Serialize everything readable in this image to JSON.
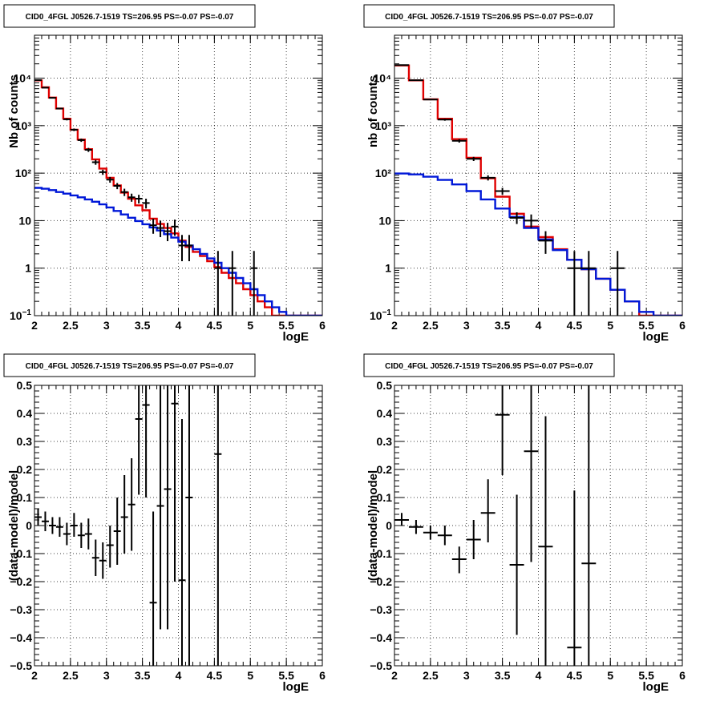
{
  "chart_data": [
    {
      "id": "p1",
      "type": "line",
      "title": "CID0_4FGL J0526.7-1519 TS=206.95 PS=-0.07 PS=-0.07",
      "xlabel": "logE",
      "ylabel": "Nb of counts",
      "xlim": [
        2,
        6
      ],
      "ylim": [
        0.1,
        80000
      ],
      "yscale": "log",
      "grid": true,
      "x_ticks": [
        "2",
        "2.5",
        "3",
        "3.5",
        "4",
        "4.5",
        "5",
        "5.5",
        "6"
      ],
      "y_ticks": [
        "10",
        "1",
        "10",
        "10²",
        "10³",
        "10⁴"
      ],
      "series": [
        {
          "kind": "step",
          "color": "#e00000",
          "edges": [
            2.0,
            2.1,
            2.2,
            2.3,
            2.4,
            2.5,
            2.6,
            2.7,
            2.8,
            2.9,
            3.0,
            3.1,
            3.2,
            3.3,
            3.4,
            3.5,
            3.6,
            3.7,
            3.8,
            3.9,
            4.0,
            4.1,
            4.2,
            4.3,
            4.4,
            4.5,
            4.6,
            4.7,
            4.8,
            4.9,
            5.0,
            5.1,
            5.2,
            5.3,
            5.4,
            5.5,
            5.6,
            5.7,
            5.8,
            5.9,
            6.0
          ],
          "values": [
            9000,
            6400,
            3900,
            2300,
            1400,
            820,
            510,
            320,
            195,
            125,
            80,
            55,
            39,
            29,
            21,
            16.5,
            11,
            8.5,
            7,
            5.4,
            3.8,
            2.8,
            2.2,
            1.8,
            1.4,
            1.05,
            0.8,
            0.62,
            0.48,
            0.36,
            0.27,
            0.2,
            0.15,
            0.1,
            0.1,
            0.1,
            0.1,
            0.1,
            0.1,
            0.1
          ]
        },
        {
          "kind": "step",
          "color": "#0018d8",
          "edges": [
            2.0,
            2.1,
            2.2,
            2.3,
            2.4,
            2.5,
            2.6,
            2.7,
            2.8,
            2.9,
            3.0,
            3.1,
            3.2,
            3.3,
            3.4,
            3.5,
            3.6,
            3.7,
            3.8,
            3.9,
            4.0,
            4.1,
            4.2,
            4.3,
            4.4,
            4.5,
            4.6,
            4.7,
            4.8,
            4.9,
            5.0,
            5.1,
            5.2,
            5.3,
            5.4,
            5.5,
            5.6,
            5.7,
            5.8,
            5.9,
            6.0
          ],
          "values": [
            49,
            47,
            44,
            40,
            37,
            34,
            31,
            28,
            25,
            22,
            19,
            16,
            13.5,
            11.5,
            9.8,
            8.4,
            7.2,
            6.2,
            5.2,
            4.4,
            3.6,
            3.0,
            2.5,
            2.0,
            1.6,
            1.3,
            1.0,
            0.8,
            0.62,
            0.48,
            0.36,
            0.27,
            0.2,
            0.15,
            0.12,
            0.1,
            0.1,
            0.1,
            0.1,
            0.1
          ]
        },
        {
          "kind": "errorbar",
          "color": "#000000",
          "points": [
            {
              "x": 2.05,
              "y": 9100,
              "lo": 8900,
              "hi": 9300
            },
            {
              "x": 2.15,
              "y": 6300,
              "lo": 6150,
              "hi": 6450
            },
            {
              "x": 2.25,
              "y": 3850,
              "lo": 3730,
              "hi": 3970
            },
            {
              "x": 2.35,
              "y": 2290,
              "lo": 2200,
              "hi": 2380
            },
            {
              "x": 2.45,
              "y": 1360,
              "lo": 1290,
              "hi": 1430
            },
            {
              "x": 2.55,
              "y": 820,
              "lo": 770,
              "hi": 870
            },
            {
              "x": 2.65,
              "y": 495,
              "lo": 455,
              "hi": 535
            },
            {
              "x": 2.75,
              "y": 310,
              "lo": 280,
              "hi": 340
            },
            {
              "x": 2.85,
              "y": 170,
              "lo": 150,
              "hi": 190
            },
            {
              "x": 2.95,
              "y": 105,
              "lo": 92,
              "hi": 118
            },
            {
              "x": 3.05,
              "y": 73,
              "lo": 63,
              "hi": 83
            },
            {
              "x": 3.15,
              "y": 54,
              "lo": 46,
              "hi": 62
            },
            {
              "x": 3.25,
              "y": 40,
              "lo": 33,
              "hi": 47
            },
            {
              "x": 3.35,
              "y": 31,
              "lo": 25,
              "hi": 37
            },
            {
              "x": 3.45,
              "y": 29,
              "lo": 23,
              "hi": 35
            },
            {
              "x": 3.55,
              "y": 23.5,
              "lo": 18,
              "hi": 29
            },
            {
              "x": 3.65,
              "y": 8,
              "lo": 5.3,
              "hi": 11
            },
            {
              "x": 3.75,
              "y": 7,
              "lo": 4.5,
              "hi": 10
            },
            {
              "x": 3.85,
              "y": 6,
              "lo": 3.7,
              "hi": 9
            },
            {
              "x": 3.95,
              "y": 7.5,
              "lo": 4.8,
              "hi": 10.5
            },
            {
              "x": 4.05,
              "y": 3,
              "lo": 1.4,
              "hi": 5
            },
            {
              "x": 4.15,
              "y": 3,
              "lo": 1.4,
              "hi": 5
            },
            {
              "x": 4.55,
              "y": 1,
              "lo": 0.1,
              "hi": 2.3
            },
            {
              "x": 4.75,
              "y": 1,
              "lo": 0.1,
              "hi": 2.3
            },
            {
              "x": 5.05,
              "y": 1,
              "lo": 0.1,
              "hi": 2.3
            }
          ]
        }
      ]
    },
    {
      "id": "p2",
      "type": "line",
      "title": "CID0_4FGL J0526.7-1519 TS=206.95 PS=-0.07 PS=-0.07",
      "xlabel": "logE",
      "ylabel": "nb of counts",
      "xlim": [
        2,
        6
      ],
      "ylim": [
        0.1,
        80000
      ],
      "yscale": "log",
      "grid": true,
      "x_ticks": [
        "2",
        "2.5",
        "3",
        "3.5",
        "4",
        "4.5",
        "5",
        "5.5",
        "6"
      ],
      "y_ticks": [
        "10",
        "1",
        "10",
        "10²",
        "10³",
        "10⁴"
      ],
      "series": [
        {
          "kind": "step",
          "color": "#e00000",
          "edges": [
            2.0,
            2.2,
            2.4,
            2.6,
            2.8,
            3.0,
            3.2,
            3.4,
            3.6,
            3.8,
            4.0,
            4.2,
            4.4,
            4.6,
            4.8,
            5.0,
            5.2,
            5.4,
            5.6,
            5.8,
            6.0
          ],
          "values": [
            18500,
            9000,
            3600,
            1400,
            520,
            210,
            78,
            32,
            14,
            7.5,
            4.5,
            2.5,
            1.5,
            0.95,
            0.6,
            0.35,
            0.2,
            0.1,
            0.1,
            0.1
          ]
        },
        {
          "kind": "step",
          "color": "#0018d8",
          "edges": [
            2.0,
            2.2,
            2.4,
            2.6,
            2.8,
            3.0,
            3.2,
            3.4,
            3.6,
            3.8,
            4.0,
            4.2,
            4.4,
            4.6,
            4.8,
            5.0,
            5.2,
            5.4,
            5.6,
            5.8,
            6.0
          ],
          "values": [
            98,
            94,
            84,
            72,
            58,
            42,
            28,
            18,
            12,
            7,
            4,
            2.4,
            1.5,
            0.95,
            0.6,
            0.35,
            0.2,
            0.12,
            0.1,
            0.1
          ]
        },
        {
          "kind": "errorbar",
          "color": "#000000",
          "points": [
            {
              "x": 2.1,
              "y": 18800,
              "lo": 18500,
              "hi": 19100
            },
            {
              "x": 2.3,
              "y": 9050,
              "lo": 8850,
              "hi": 9250
            },
            {
              "x": 2.5,
              "y": 3550,
              "lo": 3430,
              "hi": 3670
            },
            {
              "x": 2.7,
              "y": 1340,
              "lo": 1270,
              "hi": 1410
            },
            {
              "x": 2.9,
              "y": 480,
              "lo": 440,
              "hi": 520
            },
            {
              "x": 3.1,
              "y": 200,
              "lo": 180,
              "hi": 220
            },
            {
              "x": 3.3,
              "y": 80,
              "lo": 70,
              "hi": 90
            },
            {
              "x": 3.5,
              "y": 42,
              "lo": 35,
              "hi": 49
            },
            {
              "x": 3.7,
              "y": 11.5,
              "lo": 8.5,
              "hi": 15
            },
            {
              "x": 3.9,
              "y": 10,
              "lo": 7,
              "hi": 13.5
            },
            {
              "x": 4.1,
              "y": 3.8,
              "lo": 2,
              "hi": 6
            },
            {
              "x": 4.5,
              "y": 1,
              "lo": 0.1,
              "hi": 2.3
            },
            {
              "x": 4.7,
              "y": 1,
              "lo": 0.1,
              "hi": 2.3
            },
            {
              "x": 5.1,
              "y": 1,
              "lo": 0.1,
              "hi": 2.3
            }
          ]
        }
      ]
    },
    {
      "id": "p3",
      "type": "scatter",
      "title": "CID0_4FGL J0526.7-1519 TS=206.95 PS=-0.07 PS=-0.07",
      "xlabel": "logE",
      "ylabel": "(data-model)/model",
      "xlim": [
        2,
        6
      ],
      "ylim": [
        -0.5,
        0.5
      ],
      "yscale": "linear",
      "grid": true,
      "x_ticks": [
        "2",
        "2.5",
        "3",
        "3.5",
        "4",
        "4.5",
        "5",
        "5.5",
        "6"
      ],
      "y_ticks": [
        "−0.5",
        "−0.4",
        "−0.3",
        "−0.2",
        "−0.1",
        "0",
        "0.1",
        "0.2",
        "0.3",
        "0.4",
        "0.5"
      ],
      "series": [
        {
          "kind": "errorbar",
          "color": "#000000",
          "points": [
            {
              "x": 2.05,
              "y": 0.03,
              "lo": 0.0,
              "hi": 0.06
            },
            {
              "x": 2.15,
              "y": 0.015,
              "lo": -0.02,
              "hi": 0.05
            },
            {
              "x": 2.25,
              "y": 0.0,
              "lo": -0.03,
              "hi": 0.03
            },
            {
              "x": 2.35,
              "y": -0.005,
              "lo": -0.04,
              "hi": 0.03
            },
            {
              "x": 2.45,
              "y": -0.03,
              "lo": -0.07,
              "hi": 0.01
            },
            {
              "x": 2.55,
              "y": 0.0,
              "lo": -0.04,
              "hi": 0.045
            },
            {
              "x": 2.65,
              "y": -0.035,
              "lo": -0.08,
              "hi": 0.01
            },
            {
              "x": 2.75,
              "y": -0.03,
              "lo": -0.085,
              "hi": 0.025
            },
            {
              "x": 2.85,
              "y": -0.115,
              "lo": -0.18,
              "hi": -0.05
            },
            {
              "x": 2.95,
              "y": -0.125,
              "lo": -0.19,
              "hi": -0.06
            },
            {
              "x": 3.05,
              "y": -0.07,
              "lo": -0.15,
              "hi": 0.0
            },
            {
              "x": 3.15,
              "y": -0.02,
              "lo": -0.14,
              "hi": 0.1
            },
            {
              "x": 3.25,
              "y": 0.03,
              "lo": -0.1,
              "hi": 0.18
            },
            {
              "x": 3.35,
              "y": 0.075,
              "lo": -0.09,
              "hi": 0.24
            },
            {
              "x": 3.45,
              "y": 0.38,
              "lo": 0.11,
              "hi": 0.5
            },
            {
              "x": 3.55,
              "y": 0.43,
              "lo": 0.1,
              "hi": 0.5
            },
            {
              "x": 3.65,
              "y": -0.275,
              "lo": -0.5,
              "hi": 0.05
            },
            {
              "x": 3.75,
              "y": 0.07,
              "lo": -0.37,
              "hi": 0.5
            },
            {
              "x": 3.85,
              "y": 0.13,
              "lo": -0.37,
              "hi": 0.5
            },
            {
              "x": 3.95,
              "y": 0.435,
              "lo": -0.2,
              "hi": 0.5
            },
            {
              "x": 4.05,
              "y": -0.195,
              "lo": -0.5,
              "hi": 0.38
            },
            {
              "x": 4.15,
              "y": 0.1,
              "lo": -0.5,
              "hi": 0.5
            },
            {
              "x": 4.55,
              "y": 0.255,
              "lo": -0.5,
              "hi": 0.5
            }
          ]
        }
      ]
    },
    {
      "id": "p4",
      "type": "scatter",
      "title": "CID0_4FGL J0526.7-1519 TS=206.95 PS=-0.07 PS=-0.07",
      "xlabel": "logE",
      "ylabel": "(data-model)/model",
      "xlim": [
        2,
        6
      ],
      "ylim": [
        -0.5,
        0.5
      ],
      "yscale": "linear",
      "grid": true,
      "x_ticks": [
        "2",
        "2.5",
        "3",
        "3.5",
        "4",
        "4.5",
        "5",
        "5.5",
        "6"
      ],
      "y_ticks": [
        "−0.5",
        "−0.4",
        "−0.3",
        "−0.2",
        "−0.1",
        "0",
        "0.1",
        "0.2",
        "0.3",
        "0.4",
        "0.5"
      ],
      "series": [
        {
          "kind": "errorbar",
          "color": "#000000",
          "points": [
            {
              "x": 2.1,
              "y": 0.02,
              "lo": 0.0,
              "hi": 0.045
            },
            {
              "x": 2.3,
              "y": -0.005,
              "lo": -0.03,
              "hi": 0.02
            },
            {
              "x": 2.5,
              "y": -0.025,
              "lo": -0.05,
              "hi": 0.0
            },
            {
              "x": 2.7,
              "y": -0.035,
              "lo": -0.07,
              "hi": 0.0
            },
            {
              "x": 2.9,
              "y": -0.12,
              "lo": -0.17,
              "hi": -0.075
            },
            {
              "x": 3.1,
              "y": -0.05,
              "lo": -0.12,
              "hi": 0.02
            },
            {
              "x": 3.3,
              "y": 0.045,
              "lo": -0.06,
              "hi": 0.165
            },
            {
              "x": 3.5,
              "y": 0.395,
              "lo": 0.18,
              "hi": 0.5
            },
            {
              "x": 3.7,
              "y": -0.14,
              "lo": -0.39,
              "hi": 0.11
            },
            {
              "x": 3.9,
              "y": 0.265,
              "lo": -0.13,
              "hi": 0.5
            },
            {
              "x": 4.1,
              "y": -0.075,
              "lo": -0.5,
              "hi": 0.39
            },
            {
              "x": 4.5,
              "y": -0.435,
              "lo": -0.5,
              "hi": 0.125
            },
            {
              "x": 4.7,
              "y": -0.135,
              "lo": -0.5,
              "hi": 0.5
            }
          ]
        }
      ]
    }
  ]
}
